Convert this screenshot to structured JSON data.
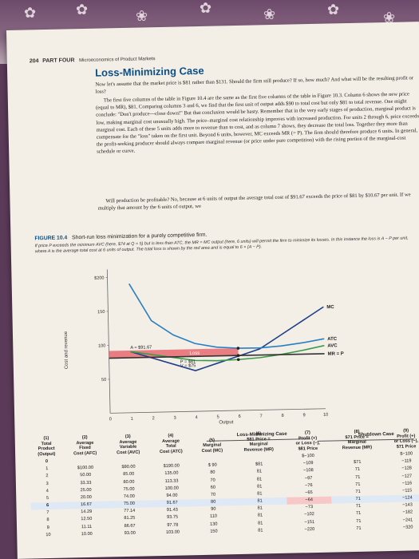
{
  "header": {
    "page_number": "204",
    "part": "PART FOUR",
    "book": "Microeconomics of Product Markets"
  },
  "section_title": "Loss-Minimizing Case",
  "paragraphs": [
    "Now let's assume that the market price is $81 rather than $131. Should the firm still produce? If so, how much? And what will be the resulting profit or loss?",
    "The first five columns of the table in Figure 10.4 are the same as the first five columns of the table in Figure 10.3. Column 6 shows the new price (equal to MR), $81. Comparing columns 3 and 6, we find that the first unit of output adds $90 to total cost but only $81 to total revenue. One might conclude: \"Don't produce—close down!\" But that conclusion would be hasty. Remember that in the very early stages of production, marginal product is low, making marginal cost unusually high. The price–marginal cost relationship improves with increased production. For units 2 through 6, price exceeds marginal cost. Each of these 5 units adds more to revenue than to cost, and as column 7 shows, they decrease the total loss. Together they more than compensate for the \"loss\" taken on the first unit. Beyond 6 units, however, MC exceeds MR (= P). The firm should therefore produce 6 units. In general, the profit-seeking producer should always compare marginal revenue (or price under pure competition) with the rising portion of the marginal-cost schedule or curve.",
    "Will production be profitable? No, because at 6 units of output the average total cost of $91.67 exceeds the price of $81 by $10.67 per unit. If we multiply that amount by the 6 units of output, we"
  ],
  "figure": {
    "label": "FIGURE 10.4",
    "title": "Short-run loss minimization for a purely competitive firm.",
    "caption": "If price P exceeds the minimum AVC (here, $74 at Q = 5) but is less than ATC, the MR = MC output (here, 6 units) will permit the firm to minimize its losses. In this instance the loss is A − P per unit, where A is the average total cost at 6 units of output. The total loss is shown by the red area and is equal to 6 × (A − P)."
  },
  "chart_data": {
    "type": "line",
    "ylabel": "Cost and revenue",
    "xlabel": "Output",
    "x_ticks": [
      "0",
      "1",
      "2",
      "3",
      "4",
      "5",
      "6",
      "7",
      "8",
      "9",
      "10"
    ],
    "y_ticks": [
      "50",
      "100",
      "150",
      "$200"
    ],
    "xlim": [
      0,
      10
    ],
    "ylim": [
      0,
      200
    ],
    "series": [
      {
        "name": "MC",
        "x": [
          1,
          2,
          3,
          4,
          5,
          6,
          7,
          8,
          9,
          10
        ],
        "y": [
          90,
          80,
          70,
          60,
          70,
          80,
          90,
          110,
          130,
          150
        ]
      },
      {
        "name": "ATC",
        "x": [
          1,
          2,
          3,
          4,
          5,
          6,
          7,
          8,
          9,
          10
        ],
        "y": [
          190,
          135,
          113.33,
          100,
          94,
          91.67,
          91.43,
          93.75,
          97.78,
          103
        ]
      },
      {
        "name": "AVC",
        "x": [
          1,
          2,
          3,
          4,
          5,
          6,
          7,
          8,
          9,
          10
        ],
        "y": [
          90,
          85,
          80,
          75,
          74,
          75,
          77.14,
          81.25,
          86.67,
          93
        ]
      },
      {
        "name": "MR = P",
        "x": [
          0,
          10
        ],
        "y": [
          81,
          81
        ]
      }
    ],
    "annotations": [
      "A = $91.67",
      "P = $81",
      "V = $75",
      "Loss"
    ],
    "loss_rect": {
      "x": [
        0,
        6
      ],
      "y": [
        81,
        91.67
      ]
    }
  },
  "colors": {
    "mc": "#1f3f8a",
    "atc": "#2a7fc0",
    "avc": "#3a9a4a",
    "mrp": "#333333",
    "loss": "#e8696f",
    "heading": "#0b4f86"
  },
  "table": {
    "group_loss": "Loss-Minimizing Case",
    "group_shutdown": "Shutdown Case",
    "headers": [
      [
        "(1)",
        "Total",
        "Product",
        "(Output)"
      ],
      [
        "(2)",
        "Average",
        "Fixed",
        "Cost (AFC)"
      ],
      [
        "(3)",
        "Average",
        "Variable",
        "Cost (AVC)"
      ],
      [
        "(4)",
        "Average",
        "Total",
        "Cost (ATC)"
      ],
      [
        "(5)",
        "Marginal",
        "Cost (MC)",
        ""
      ],
      [
        "(6)",
        "$81 Price =",
        "Marginal",
        "Revenue (MR)"
      ],
      [
        "(7)",
        "Profit (+)",
        "or Loss (−),",
        "$81 Price"
      ],
      [
        "(8)",
        "$71 Price =",
        "Marginal",
        "Revenue (MR)"
      ],
      [
        "(9)",
        "Profit (+)",
        "or Loss (−),",
        "$71 Price"
      ]
    ],
    "rows": [
      [
        "0",
        "",
        "",
        "",
        "",
        "",
        "$−100",
        "",
        "$−100"
      ],
      [
        "1",
        "$100.00",
        "$90.00",
        "$190.00",
        "$ 90",
        "$81",
        "−109",
        "$71",
        "−119"
      ],
      [
        "2",
        "50.00",
        "85.00",
        "135.00",
        "80",
        "81",
        "−108",
        "71",
        "−128"
      ],
      [
        "3",
        "33.33",
        "80.00",
        "113.33",
        "70",
        "81",
        "−97",
        "71",
        "−127"
      ],
      [
        "4",
        "25.00",
        "75.00",
        "100.00",
        "60",
        "81",
        "−76",
        "71",
        "−116"
      ],
      [
        "5",
        "20.00",
        "74.00",
        "94.00",
        "70",
        "81",
        "−65",
        "71",
        "−115"
      ],
      [
        "6",
        "16.67",
        "75.00",
        "91.67",
        "80",
        "81",
        "−64",
        "71",
        "−124"
      ],
      [
        "7",
        "14.29",
        "77.14",
        "91.43",
        "90",
        "81",
        "−73",
        "71",
        "−143"
      ],
      [
        "8",
        "12.50",
        "81.25",
        "93.75",
        "110",
        "81",
        "−102",
        "71",
        "−182"
      ],
      [
        "9",
        "11.11",
        "86.67",
        "97.78",
        "130",
        "81",
        "−151",
        "71",
        "−241"
      ],
      [
        "10",
        "10.00",
        "93.00",
        "103.00",
        "150",
        "81",
        "−220",
        "71",
        "−320"
      ]
    ]
  }
}
